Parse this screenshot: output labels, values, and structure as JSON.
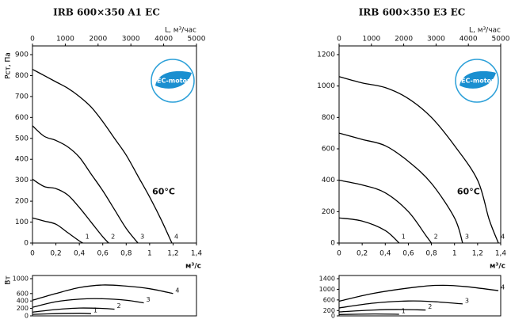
{
  "chart_data": [
    {
      "type": "line",
      "title": "IRB 600×350 A1 EC",
      "ylabel": "Pст, Па",
      "xlabel": "м³/с",
      "x2label": "L, м³/час",
      "annotation": "60°C",
      "badge": "EC-motor",
      "xlim": [
        0,
        1.4
      ],
      "xticks": [
        0,
        {
          "value": 0.2,
          "label": "0,2"
        },
        {
          "value": 0.4,
          "label": "0,4"
        },
        {
          "value": 0.6,
          "label": "0,6"
        },
        {
          "value": 0.8,
          "label": "0,8"
        },
        1,
        {
          "value": 1.2,
          "label": "1,2"
        },
        {
          "value": 1.4,
          "label": "1,4"
        }
      ],
      "x2lim": [
        0,
        5000
      ],
      "x2ticks": [
        0,
        1000,
        2000,
        3000,
        4000,
        5000
      ],
      "ylim": [
        0,
        900
      ],
      "yticks": [
        0,
        100,
        200,
        300,
        400,
        500,
        600,
        700,
        800,
        900
      ],
      "series": [
        {
          "name": "1",
          "color": "#000000",
          "x": [
            0,
            0.1,
            0.2,
            0.3,
            0.4,
            0.43
          ],
          "values": [
            120,
            105,
            90,
            50,
            10,
            0
          ]
        },
        {
          "name": "2",
          "color": "#000000",
          "x": [
            0,
            0.1,
            0.2,
            0.3,
            0.4,
            0.5,
            0.6,
            0.65
          ],
          "values": [
            305,
            270,
            260,
            230,
            170,
            100,
            30,
            0
          ]
        },
        {
          "name": "3",
          "color": "#000000",
          "x": [
            0,
            0.1,
            0.2,
            0.3,
            0.4,
            0.5,
            0.6,
            0.7,
            0.8,
            0.9
          ],
          "values": [
            560,
            510,
            490,
            460,
            410,
            330,
            250,
            160,
            70,
            0
          ]
        },
        {
          "name": "4",
          "color": "#000000",
          "x": [
            0,
            0.1,
            0.2,
            0.3,
            0.4,
            0.5,
            0.6,
            0.7,
            0.8,
            0.9,
            1,
            1.1,
            1.19
          ],
          "values": [
            830,
            800,
            770,
            740,
            700,
            650,
            580,
            500,
            420,
            320,
            220,
            110,
            0
          ]
        }
      ]
    },
    {
      "type": "line",
      "ylabel": "Вт",
      "xlim": [
        0,
        1.4
      ],
      "ylim": [
        0,
        1000
      ],
      "yticks": [
        0,
        200,
        400,
        600,
        1000
      ],
      "series": [
        {
          "name": "1",
          "color": "#000000",
          "x": [
            0,
            0.2,
            0.4,
            0.5
          ],
          "values": [
            40,
            60,
            70,
            60
          ]
        },
        {
          "name": "2",
          "color": "#000000",
          "x": [
            0,
            0.2,
            0.4,
            0.6,
            0.7
          ],
          "values": [
            100,
            170,
            210,
            200,
            180
          ]
        },
        {
          "name": "3",
          "color": "#000000",
          "x": [
            0,
            0.2,
            0.4,
            0.6,
            0.8,
            0.95
          ],
          "values": [
            230,
            380,
            450,
            460,
            420,
            350
          ]
        },
        {
          "name": "4",
          "color": "#000000",
          "x": [
            0,
            0.2,
            0.4,
            0.6,
            0.8,
            1,
            1.2
          ],
          "values": [
            420,
            600,
            760,
            830,
            800,
            730,
            600
          ]
        }
      ]
    },
    {
      "type": "line",
      "title": "IRB 600×350 E3 EC",
      "ylabel": "Pст, Па",
      "xlabel": "м³/с",
      "x2label": "L, м³/час",
      "annotation": "60°C",
      "badge": "EC-motor",
      "xlim": [
        0,
        1.4
      ],
      "xticks": [
        0,
        {
          "value": 0.2,
          "label": "0,2"
        },
        {
          "value": 0.4,
          "label": "0,4"
        },
        {
          "value": 0.6,
          "label": "0,6"
        },
        {
          "value": 0.8,
          "label": "0,8"
        },
        1,
        {
          "value": 1.2,
          "label": "1,2"
        },
        {
          "value": 1.4,
          "label": "1,4"
        }
      ],
      "x2lim": [
        0,
        5000
      ],
      "x2ticks": [
        0,
        1000,
        2000,
        3000,
        4000,
        5000
      ],
      "ylim": [
        0,
        1200
      ],
      "yticks": [
        0,
        200,
        400,
        600,
        800,
        1000,
        1200
      ],
      "series": [
        {
          "name": "1",
          "color": "#000000",
          "x": [
            0,
            0.2,
            0.4,
            0.52
          ],
          "values": [
            160,
            140,
            80,
            0
          ]
        },
        {
          "name": "2",
          "color": "#000000",
          "x": [
            0,
            0.2,
            0.4,
            0.6,
            0.75,
            0.8
          ],
          "values": [
            400,
            370,
            320,
            200,
            50,
            0
          ]
        },
        {
          "name": "3",
          "color": "#000000",
          "x": [
            0,
            0.2,
            0.4,
            0.6,
            0.8,
            1,
            1.07
          ],
          "values": [
            700,
            660,
            620,
            520,
            380,
            160,
            0
          ]
        },
        {
          "name": "4",
          "color": "#000000",
          "x": [
            0,
            0.2,
            0.4,
            0.6,
            0.8,
            1,
            1.2,
            1.3,
            1.38
          ],
          "values": [
            1060,
            1020,
            990,
            920,
            800,
            620,
            400,
            150,
            0
          ]
        }
      ]
    },
    {
      "type": "line",
      "ylabel": "Вт",
      "xlim": [
        0,
        1.4
      ],
      "ylim": [
        0,
        1400
      ],
      "yticks": [
        0,
        200,
        600,
        1000,
        1400
      ],
      "series": [
        {
          "name": "1",
          "color": "#000000",
          "x": [
            0,
            0.3,
            0.52
          ],
          "values": [
            50,
            70,
            60
          ]
        },
        {
          "name": "2",
          "color": "#000000",
          "x": [
            0,
            0.3,
            0.5,
            0.75
          ],
          "values": [
            150,
            220,
            240,
            220
          ]
        },
        {
          "name": "3",
          "color": "#000000",
          "x": [
            0,
            0.3,
            0.6,
            0.8,
            1.07
          ],
          "values": [
            300,
            480,
            560,
            540,
            450
          ]
        },
        {
          "name": "4",
          "color": "#000000",
          "x": [
            0,
            0.3,
            0.7,
            0.9,
            1.1,
            1.38
          ],
          "values": [
            550,
            850,
            1100,
            1150,
            1100,
            950
          ]
        }
      ]
    }
  ]
}
